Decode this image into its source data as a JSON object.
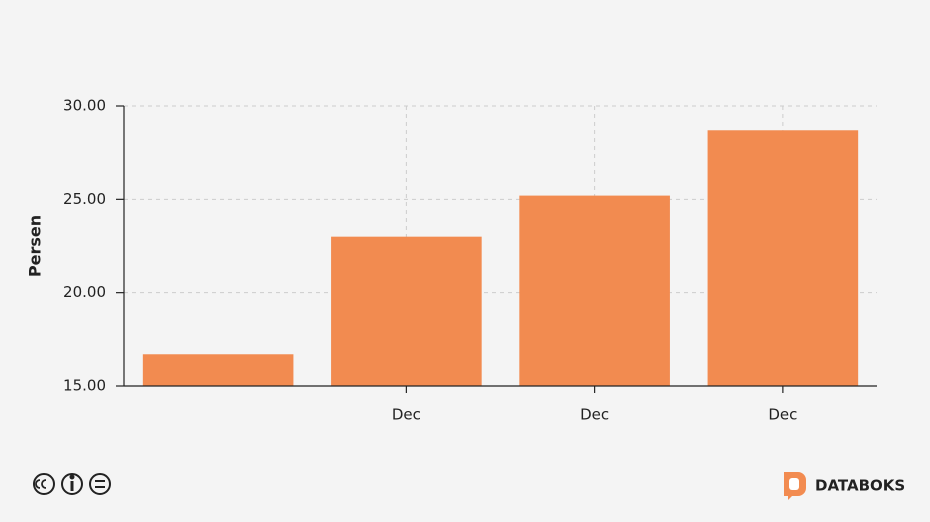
{
  "chart_data": {
    "type": "bar",
    "y_label": "Persen",
    "categories": [
      null,
      "Dec",
      "Dec",
      "Dec"
    ],
    "values": [
      16.7,
      23.0,
      25.2,
      28.7
    ],
    "color": "#f28b50",
    "ylim": [
      15,
      30
    ],
    "yticks": [
      {
        "value": 15,
        "label": "15.00"
      },
      {
        "value": 20,
        "label": "20.00"
      },
      {
        "value": 25,
        "label": "25.00"
      },
      {
        "value": 30,
        "label": "30.00"
      }
    ],
    "grid": true
  },
  "footer": {
    "brand": "DATABOKS"
  }
}
